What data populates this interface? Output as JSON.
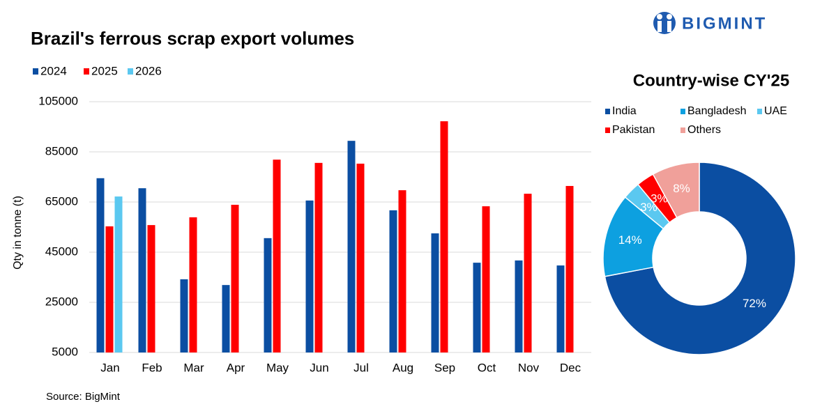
{
  "logo": "BIGMINT",
  "source": "Source: BigMint",
  "chart_data": [
    {
      "type": "bar",
      "title": "Brazil's ferrous scrap export volumes",
      "y_label": "Qty in tonne (t)",
      "categories": [
        "Jan",
        "Feb",
        "Mar",
        "Apr",
        "May",
        "Jun",
        "Jul",
        "Aug",
        "Sep",
        "Oct",
        "Nov",
        "Dec"
      ],
      "series": [
        {
          "name": "2024",
          "color": "#0b4ea2",
          "values": [
            74500,
            70500,
            34200,
            31900,
            50600,
            65600,
            89400,
            61700,
            52500,
            40800,
            41700,
            39700
          ]
        },
        {
          "name": "2025",
          "color": "#ff0000",
          "values": [
            55300,
            55800,
            58900,
            63900,
            81900,
            80600,
            80300,
            69700,
            97200,
            63300,
            68300,
            71400
          ]
        },
        {
          "name": "2026",
          "color": "#5bc8f0",
          "values": [
            67200,
            null,
            null,
            null,
            null,
            null,
            null,
            null,
            null,
            null,
            null,
            null
          ]
        }
      ],
      "ylim": [
        5000,
        105000
      ],
      "yticks": [
        5000,
        25000,
        45000,
        65000,
        85000,
        105000
      ],
      "grid": true,
      "legend": "top-left"
    },
    {
      "type": "donut",
      "title": "Country-wise CY'25",
      "categories": [
        "India",
        "Bangladesh",
        "UAE",
        "Pakistan",
        "Others"
      ],
      "values": [
        72,
        14,
        3,
        3,
        8
      ],
      "value_labels": [
        "72%",
        "14%",
        "3%",
        "3%",
        "8%"
      ],
      "colors": [
        "#0b4ea2",
        "#0da0e0",
        "#5bc8f0",
        "#ff0000",
        "#f0a09a"
      ],
      "legend": "top"
    }
  ]
}
